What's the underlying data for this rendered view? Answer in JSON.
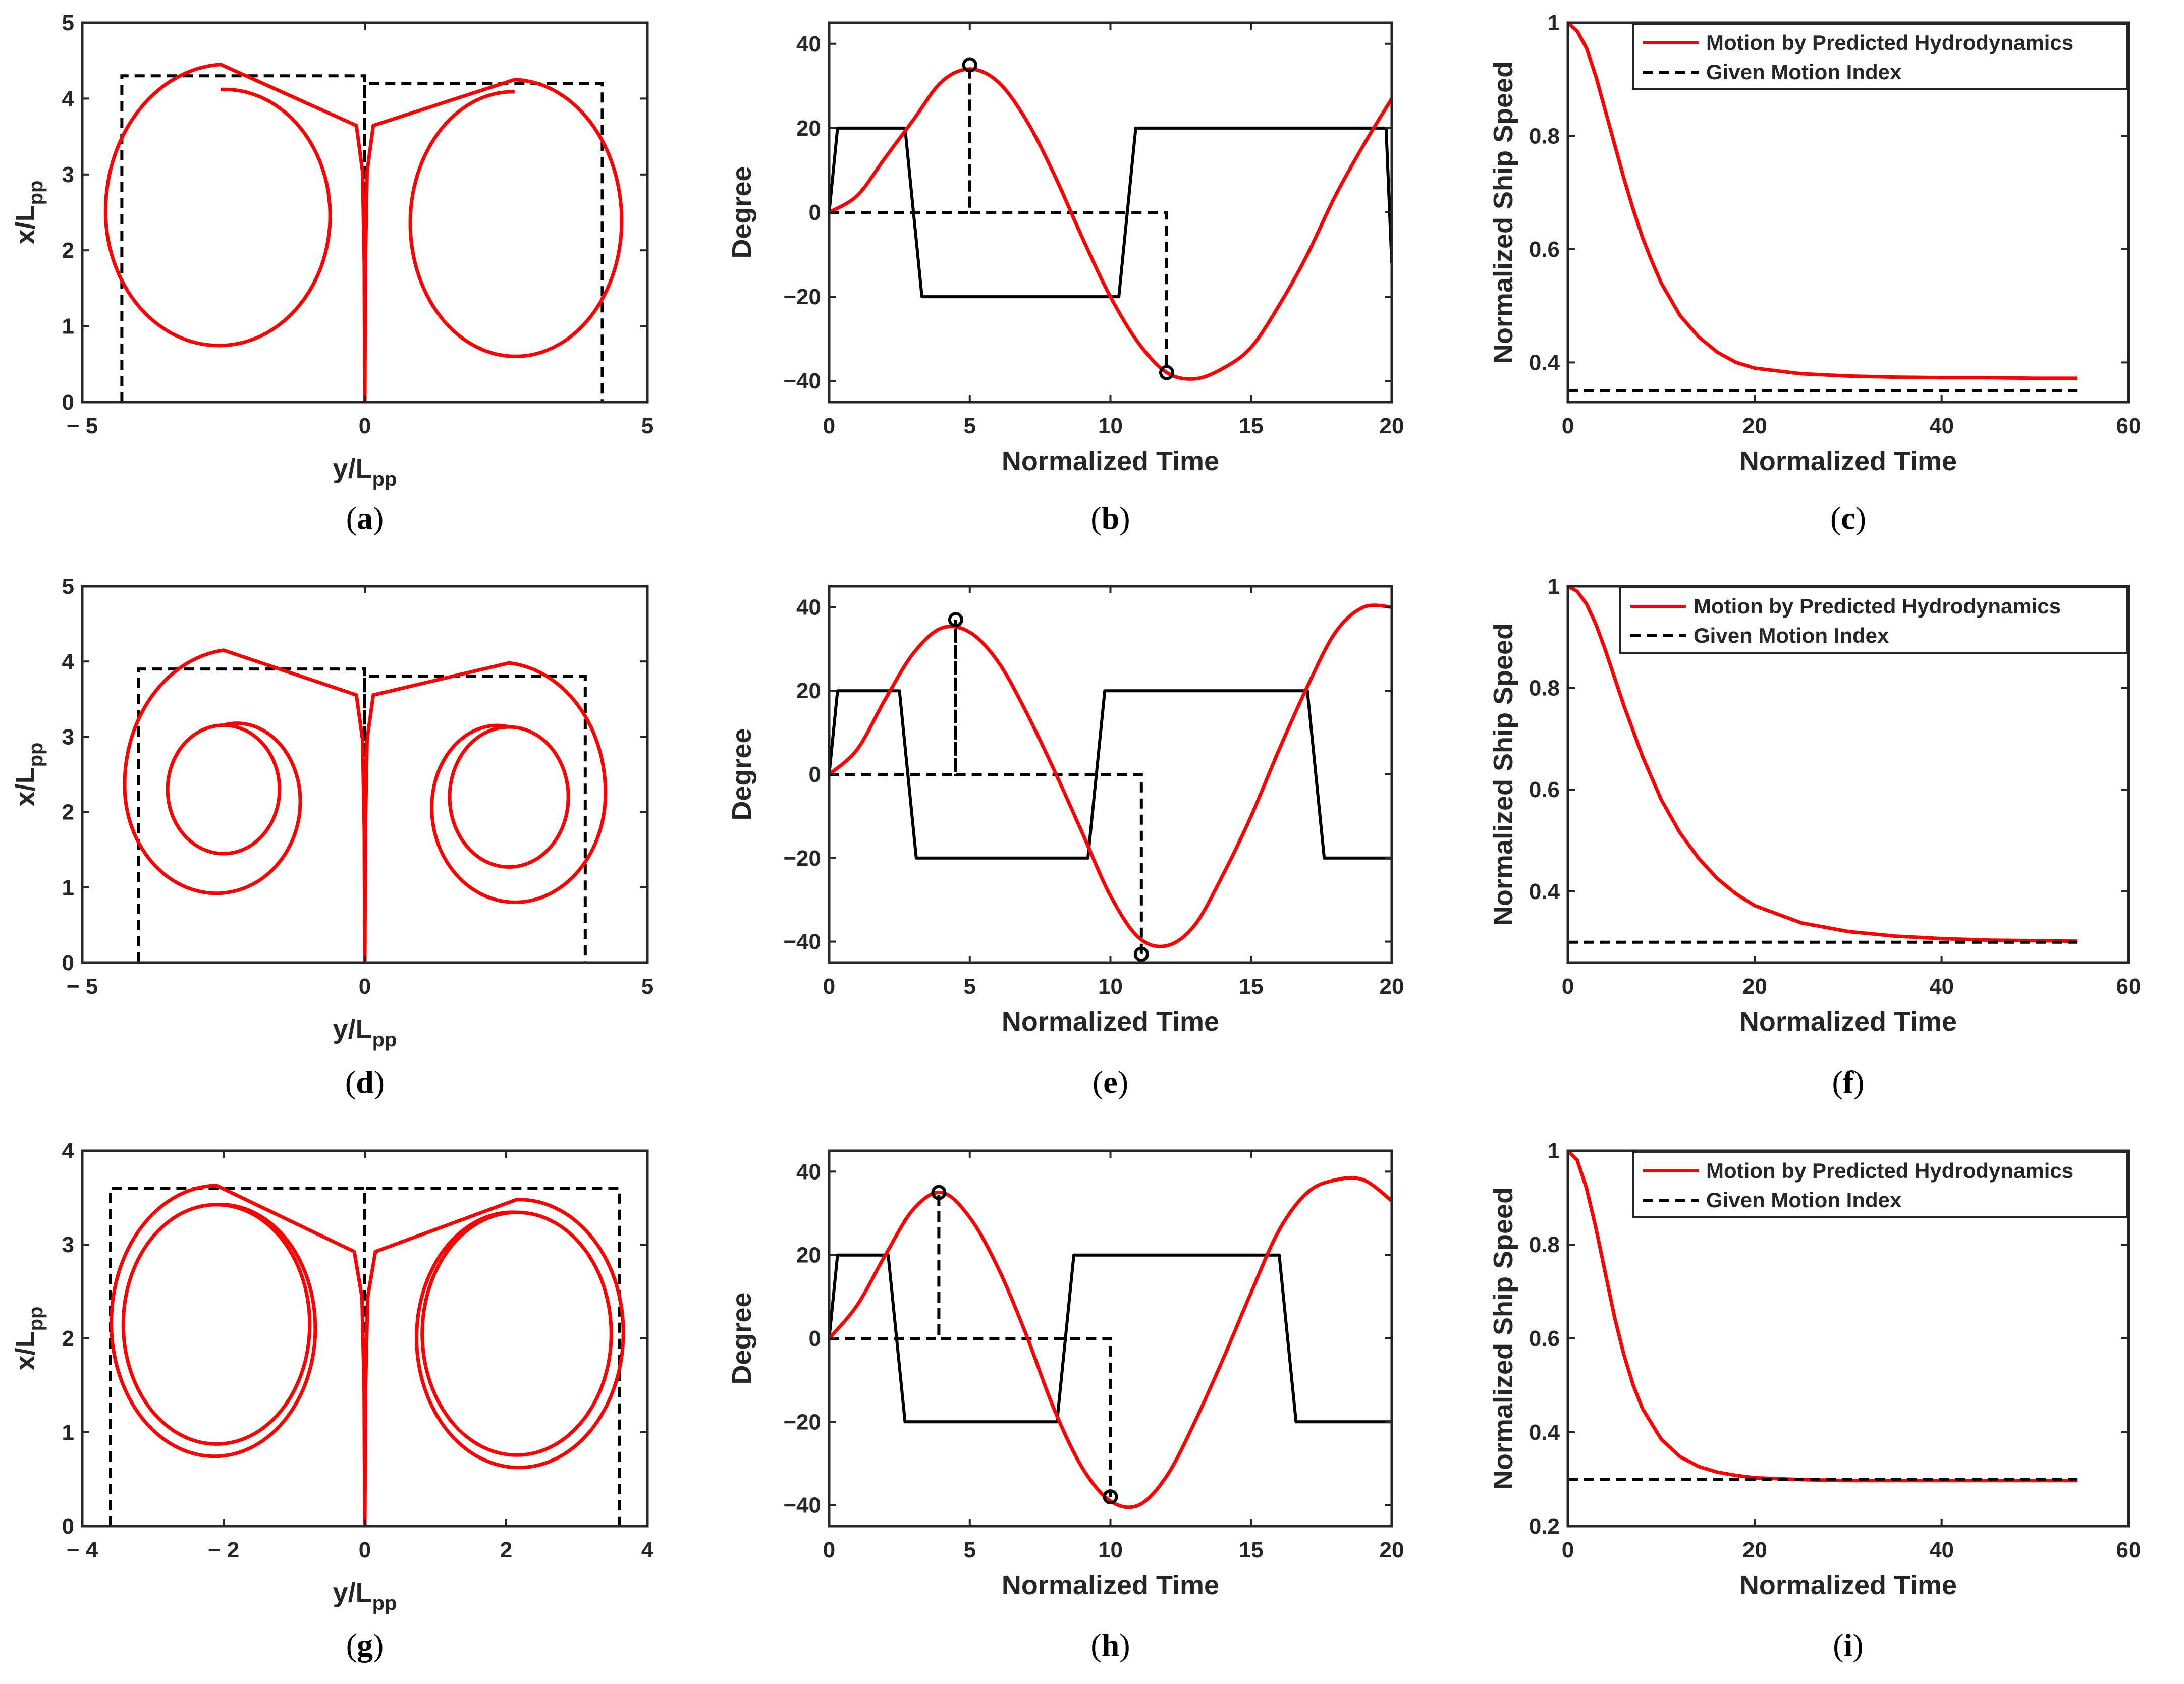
{
  "colors": {
    "red": "#ff0000",
    "black": "#000000"
  },
  "chart_data": [
    {
      "id": "a",
      "type": "trajectory",
      "label": "a",
      "xlabel": "y/L",
      "xlabel_sub": "pp",
      "ylabel": "x/L",
      "ylabel_sub": "pp",
      "xlim": [
        -5,
        5
      ],
      "ylim": [
        0,
        5
      ],
      "xticks": [
        -5,
        0,
        5
      ],
      "yticks": [
        0,
        1,
        2,
        3,
        4,
        5
      ],
      "xticklabels": [
        "− 5",
        "0",
        "5"
      ],
      "yticklabels": [
        "0",
        "1",
        "2",
        "3",
        "4",
        "5"
      ],
      "loops": [
        {
          "side": -1,
          "tail": 4.05,
          "advance": 4.45,
          "x_inner": -4.3,
          "x_outer": -0.05,
          "xc": -2.55,
          "yc": 2.5,
          "rx": 2.05,
          "ry": 1.8,
          "turns": 1,
          "shrink": 0.1
        },
        {
          "side": 1,
          "tail": 4.05,
          "advance": 4.25,
          "x_inner": 4.2,
          "x_outer": 0.05,
          "xc": 2.65,
          "yc": 2.38,
          "rx": 1.9,
          "ry": 1.8,
          "turns": 1,
          "shrink": 0.05
        }
      ],
      "index_box": [
        {
          "x0": -4.3,
          "x1": 0,
          "top": 4.3
        },
        {
          "x0": 0,
          "x1": 4.2,
          "top": 4.2
        }
      ]
    },
    {
      "id": "b",
      "type": "zigzag",
      "label": "b",
      "xlabel": "Normalized Time",
      "ylabel": "Degree",
      "xlim": [
        0,
        20
      ],
      "ylim": [
        -45,
        45
      ],
      "xticks": [
        0,
        5,
        10,
        15,
        20
      ],
      "yticks": [
        -40,
        -20,
        0,
        20,
        40
      ],
      "xticklabels": [
        "0",
        "5",
        "10",
        "15",
        "20"
      ],
      "yticklabels": [
        "−40",
        "−20",
        "0",
        "20",
        "40"
      ],
      "rudder": [
        [
          0,
          0
        ],
        [
          0.3,
          20
        ],
        [
          2.7,
          20
        ],
        [
          3.3,
          -20
        ],
        [
          10.3,
          -20
        ],
        [
          10.9,
          20
        ],
        [
          19.8,
          20
        ],
        [
          20,
          -12
        ]
      ],
      "heading": [
        [
          0,
          0
        ],
        [
          1,
          4
        ],
        [
          2,
          13
        ],
        [
          3,
          22
        ],
        [
          4,
          31
        ],
        [
          5,
          34
        ],
        [
          6,
          31
        ],
        [
          7,
          22
        ],
        [
          8,
          9
        ],
        [
          9,
          -6
        ],
        [
          10,
          -20
        ],
        [
          11,
          -31
        ],
        [
          12,
          -38
        ],
        [
          13,
          -39.5
        ],
        [
          14,
          -37
        ],
        [
          15,
          -32
        ],
        [
          16,
          -22
        ],
        [
          17,
          -10
        ],
        [
          18,
          4
        ],
        [
          19,
          16
        ],
        [
          20,
          27
        ]
      ],
      "index_line": [
        [
          0,
          0
        ],
        [
          5,
          0
        ],
        [
          5,
          35
        ],
        [
          5,
          0
        ],
        [
          12,
          0
        ],
        [
          12,
          -38
        ]
      ],
      "markers": [
        [
          5,
          35
        ],
        [
          12,
          -38
        ]
      ]
    },
    {
      "id": "c",
      "type": "line",
      "label": "c",
      "xlabel": "Normalized Time",
      "ylabel": "Normalized Ship Speed",
      "xlim": [
        0,
        60
      ],
      "ylim": [
        0.33,
        1
      ],
      "xticks": [
        0,
        20,
        40,
        60
      ],
      "yticks": [
        0.4,
        0.6,
        0.8,
        1
      ],
      "xticklabels": [
        "0",
        "20",
        "40",
        "60"
      ],
      "yticklabels": [
        "0.4",
        "0.6",
        "0.8",
        "1"
      ],
      "series": [
        {
          "name": "Motion by Predicted Hydrodynamics",
          "style": "solid-red",
          "x": [
            0,
            1,
            2,
            3,
            4,
            5,
            6,
            7,
            8,
            9,
            10,
            12,
            14,
            16,
            18,
            20,
            25,
            30,
            35,
            40,
            45,
            50,
            54.5
          ],
          "y": [
            1,
            0.985,
            0.955,
            0.905,
            0.845,
            0.785,
            0.725,
            0.67,
            0.62,
            0.578,
            0.54,
            0.483,
            0.445,
            0.418,
            0.4,
            0.39,
            0.38,
            0.376,
            0.374,
            0.373,
            0.373,
            0.372,
            0.372
          ]
        },
        {
          "name": "Given Motion Index",
          "style": "dashed-black",
          "x": [
            0,
            54.5
          ],
          "y": [
            0.35,
            0.35
          ]
        }
      ],
      "legend_position": "top-right"
    },
    {
      "id": "d",
      "type": "trajectory",
      "label": "d",
      "xlabel": "y/L",
      "xlabel_sub": "pp",
      "ylabel": "x/L",
      "ylabel_sub": "pp",
      "xlim": [
        -5,
        5
      ],
      "ylim": [
        0,
        5
      ],
      "xticks": [
        -5,
        0,
        5
      ],
      "yticks": [
        0,
        1,
        2,
        3,
        4,
        5
      ],
      "xticklabels": [
        "− 5",
        "0",
        "5"
      ],
      "yticklabels": [
        "0",
        "1",
        "2",
        "3",
        "4",
        "5"
      ],
      "loops": [
        {
          "side": -1,
          "tail": 3.95,
          "advance": 4.15,
          "x_inner": -4.2,
          "x_outer": -0.05,
          "xc": -2.5,
          "yc": 2.3,
          "rx": 1.8,
          "ry": 1.55,
          "turns": 2,
          "shrink": 0.45
        },
        {
          "side": 1,
          "tail": 3.95,
          "advance": 3.98,
          "x_inner": 4.2,
          "x_outer": 0.05,
          "xc": 2.55,
          "yc": 2.2,
          "rx": 1.75,
          "ry": 1.55,
          "turns": 2,
          "shrink": 0.4
        }
      ],
      "index_box": [
        {
          "x0": -4.0,
          "x1": 0,
          "top": 3.9
        },
        {
          "x0": 0,
          "x1": 3.9,
          "top": 3.8
        }
      ]
    },
    {
      "id": "e",
      "type": "zigzag",
      "label": "e",
      "xlabel": "Normalized Time",
      "ylabel": "Degree",
      "xlim": [
        0,
        20
      ],
      "ylim": [
        -45,
        45
      ],
      "xticks": [
        0,
        5,
        10,
        15,
        20
      ],
      "yticks": [
        -40,
        -20,
        0,
        20,
        40
      ],
      "xticklabels": [
        "0",
        "5",
        "10",
        "15",
        "20"
      ],
      "yticklabels": [
        "−40",
        "−20",
        "0",
        "20",
        "40"
      ],
      "rudder": [
        [
          0,
          0
        ],
        [
          0.3,
          20
        ],
        [
          2.5,
          20
        ],
        [
          3.1,
          -20
        ],
        [
          9.2,
          -20
        ],
        [
          9.8,
          20
        ],
        [
          17,
          20
        ],
        [
          17.6,
          -20
        ],
        [
          20,
          -20
        ]
      ],
      "heading": [
        [
          0,
          0
        ],
        [
          1,
          6
        ],
        [
          2,
          18
        ],
        [
          3,
          29
        ],
        [
          4,
          35
        ],
        [
          5,
          34
        ],
        [
          6,
          27
        ],
        [
          7,
          15
        ],
        [
          8,
          1
        ],
        [
          9,
          -14
        ],
        [
          10,
          -29
        ],
        [
          11,
          -39
        ],
        [
          12,
          -41
        ],
        [
          13,
          -36
        ],
        [
          14,
          -24
        ],
        [
          15,
          -10
        ],
        [
          16,
          6
        ],
        [
          17,
          21
        ],
        [
          18,
          34
        ],
        [
          19,
          40
        ],
        [
          20,
          40
        ]
      ],
      "index_line": [
        [
          0,
          0
        ],
        [
          4.5,
          0
        ],
        [
          4.5,
          37
        ],
        [
          4.5,
          0
        ],
        [
          11.1,
          0
        ],
        [
          11.1,
          -43
        ]
      ],
      "markers": [
        [
          4.5,
          37
        ],
        [
          11.1,
          -43
        ]
      ]
    },
    {
      "id": "f",
      "type": "line",
      "label": "f",
      "xlabel": "Normalized Time",
      "ylabel": "Normalized Ship Speed",
      "xlim": [
        0,
        60
      ],
      "ylim": [
        0.26,
        1
      ],
      "xticks": [
        0,
        20,
        40,
        60
      ],
      "yticks": [
        0.4,
        0.6,
        0.8,
        1
      ],
      "xticklabels": [
        "0",
        "20",
        "40",
        "60"
      ],
      "yticklabels": [
        "0.4",
        "0.6",
        "0.8",
        "1"
      ],
      "series": [
        {
          "name": "Motion by Predicted Hydrodynamics",
          "style": "solid-red",
          "x": [
            0,
            1,
            2,
            3,
            4,
            5,
            6,
            8,
            10,
            12,
            14,
            16,
            18,
            20,
            25,
            30,
            35,
            40,
            45,
            50,
            54.5
          ],
          "y": [
            1,
            0.99,
            0.965,
            0.925,
            0.875,
            0.82,
            0.765,
            0.665,
            0.58,
            0.515,
            0.465,
            0.425,
            0.395,
            0.372,
            0.338,
            0.321,
            0.312,
            0.307,
            0.304,
            0.303,
            0.302
          ]
        },
        {
          "name": "Given Motion Index",
          "style": "dashed-black",
          "x": [
            0,
            54.5
          ],
          "y": [
            0.3,
            0.3
          ]
        }
      ],
      "legend_position": "top-right"
    },
    {
      "id": "g",
      "type": "trajectory",
      "label": "g",
      "xlabel": "y/L",
      "xlabel_sub": "pp",
      "ylabel": "x/L",
      "ylabel_sub": "pp",
      "xlim": [
        -4,
        4
      ],
      "ylim": [
        0,
        4
      ],
      "xticks": [
        -4,
        -2,
        0,
        2,
        4
      ],
      "yticks": [
        0,
        1,
        2,
        3,
        4
      ],
      "xticklabels": [
        "− 4",
        "− 2",
        "0",
        "2",
        "4"
      ],
      "yticklabels": [
        "0",
        "1",
        "2",
        "3",
        "4"
      ],
      "loops": [
        {
          "side": -1,
          "tail": 3.25,
          "advance": 3.63,
          "x_inner": -3.55,
          "x_outer": -0.03,
          "xc": -2.1,
          "yc": 2.15,
          "rx": 1.5,
          "ry": 1.45,
          "turns": 2,
          "shrink": 0.12
        },
        {
          "side": 1,
          "tail": 3.25,
          "advance": 3.48,
          "x_inner": 3.6,
          "x_outer": 0.03,
          "xc": 2.15,
          "yc": 2.05,
          "rx": 1.52,
          "ry": 1.47,
          "turns": 2,
          "shrink": 0.12
        }
      ],
      "index_box": [
        {
          "x0": -3.6,
          "x1": 0,
          "top": 3.6
        },
        {
          "x0": 0,
          "x1": 3.6,
          "top": 3.6
        }
      ]
    },
    {
      "id": "h",
      "type": "zigzag",
      "label": "h",
      "xlabel": "Normalized Time",
      "ylabel": "Degree",
      "xlim": [
        0,
        20
      ],
      "ylim": [
        -45,
        45
      ],
      "xticks": [
        0,
        5,
        10,
        15,
        20
      ],
      "yticks": [
        -40,
        -20,
        0,
        20,
        40
      ],
      "xticklabels": [
        "0",
        "5",
        "10",
        "15",
        "20"
      ],
      "yticklabels": [
        "−40",
        "−20",
        "0",
        "20",
        "40"
      ],
      "rudder": [
        [
          0,
          0
        ],
        [
          0.3,
          20
        ],
        [
          2.1,
          20
        ],
        [
          2.7,
          -20
        ],
        [
          8.1,
          -20
        ],
        [
          8.7,
          20
        ],
        [
          16,
          20
        ],
        [
          16.6,
          -20
        ],
        [
          20,
          -20
        ]
      ],
      "heading": [
        [
          0,
          0
        ],
        [
          1,
          8
        ],
        [
          2,
          20
        ],
        [
          3,
          31
        ],
        [
          4,
          35
        ],
        [
          5,
          29
        ],
        [
          6,
          17
        ],
        [
          7,
          1
        ],
        [
          8,
          -17
        ],
        [
          9,
          -31
        ],
        [
          10,
          -39
        ],
        [
          11,
          -40
        ],
        [
          12,
          -33
        ],
        [
          13,
          -20
        ],
        [
          14,
          -5
        ],
        [
          15,
          11
        ],
        [
          16,
          26
        ],
        [
          17,
          35
        ],
        [
          18,
          38
        ],
        [
          19,
          38
        ],
        [
          20,
          33
        ]
      ],
      "index_line": [
        [
          0,
          0
        ],
        [
          3.9,
          0
        ],
        [
          3.9,
          35
        ],
        [
          3.9,
          0
        ],
        [
          10,
          0
        ],
        [
          10,
          -38
        ]
      ],
      "markers": [
        [
          3.9,
          35
        ],
        [
          10,
          -38
        ]
      ]
    },
    {
      "id": "i",
      "type": "line",
      "label": "i",
      "xlabel": "Normalized Time",
      "ylabel": "Normalized Ship Speed",
      "xlim": [
        0,
        60
      ],
      "ylim": [
        0.2,
        1
      ],
      "xticks": [
        0,
        20,
        40,
        60
      ],
      "yticks": [
        0.2,
        0.4,
        0.6,
        0.8,
        1
      ],
      "xticklabels": [
        "0",
        "20",
        "40",
        "60"
      ],
      "yticklabels": [
        "0.2",
        "0.4",
        "0.6",
        "0.8",
        "1"
      ],
      "series": [
        {
          "name": "Motion by Predicted Hydrodynamics",
          "style": "solid-red",
          "x": [
            0,
            1,
            2,
            3,
            4,
            5,
            6,
            7,
            8,
            10,
            12,
            14,
            16,
            18,
            20,
            25,
            30,
            35,
            40,
            45,
            50,
            54.5
          ],
          "y": [
            1,
            0.98,
            0.92,
            0.835,
            0.74,
            0.645,
            0.565,
            0.5,
            0.45,
            0.385,
            0.348,
            0.327,
            0.315,
            0.308,
            0.303,
            0.299,
            0.297,
            0.297,
            0.297,
            0.297,
            0.297,
            0.297
          ]
        },
        {
          "name": "Given Motion Index",
          "style": "dashed-black",
          "x": [
            0,
            54.5
          ],
          "y": [
            0.3,
            0.3
          ]
        }
      ],
      "legend_position": "top-right"
    }
  ]
}
